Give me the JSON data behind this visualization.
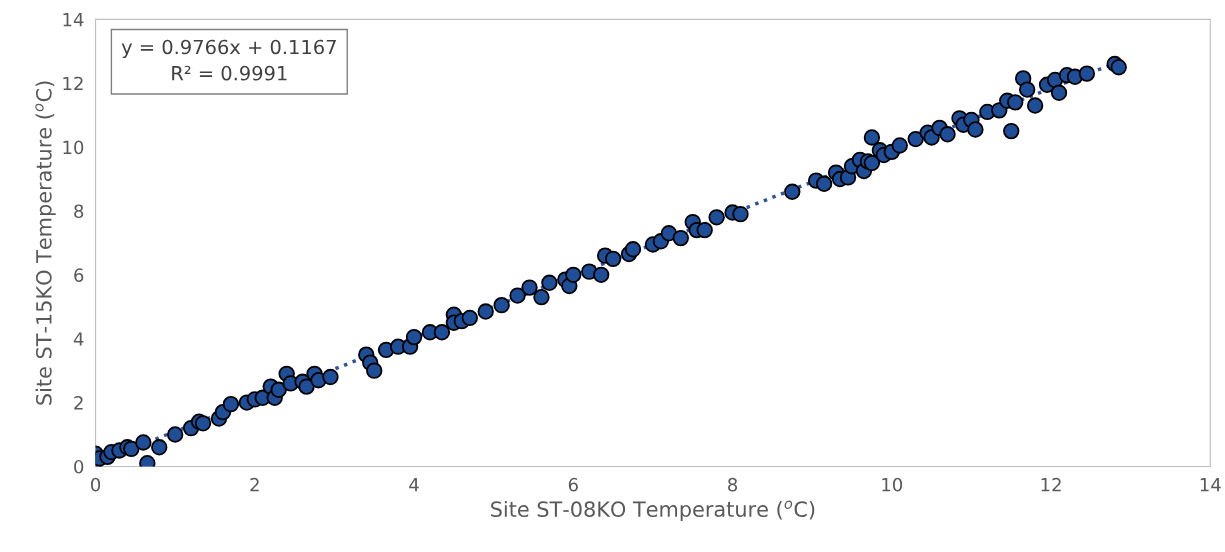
{
  "chart_data": {
    "type": "scatter",
    "xlabel": "Site ST-08KO Temperature ($^{o}$C)",
    "ylabel": "Site ST-15KO Temperature ($^{o}$C)",
    "annotations": [
      "y = 0.9766x + 0.1167\nR² = 0.9991"
    ],
    "xlim": [
      0,
      14
    ],
    "xticks": [
      0,
      2,
      4,
      6,
      8,
      10,
      12,
      14
    ],
    "ylim": [
      0,
      14
    ],
    "yticks": [
      0,
      2,
      4,
      6,
      8,
      10,
      12,
      14
    ],
    "grid": false,
    "marker": "circle",
    "series": [
      {
        "color": "#1f4e99",
        "x": [
          0,
          0,
          0.05,
          0.15,
          0.2,
          0.3,
          0.4,
          0.45,
          0.6,
          0.65,
          0.8,
          1.0,
          1.2,
          1.3,
          1.35,
          1.55,
          1.6,
          1.7,
          1.9,
          2.0,
          2.1,
          2.2,
          2.25,
          2.3,
          2.4,
          2.45,
          2.6,
          2.65,
          2.75,
          2.8,
          2.95,
          3.4,
          3.45,
          3.5,
          3.65,
          3.8,
          3.95,
          4.0,
          4.2,
          4.35,
          4.5,
          4.5,
          4.6,
          4.7,
          4.9,
          5.1,
          5.3,
          5.45,
          5.6,
          5.7,
          5.9,
          5.95,
          6.0,
          6.2,
          6.35,
          6.4,
          6.5,
          6.7,
          6.75,
          7.0,
          7.1,
          7.2,
          7.35,
          7.5,
          7.55,
          7.65,
          7.8,
          8.0,
          8.1,
          8.75,
          9.05,
          9.15,
          9.3,
          9.35,
          9.45,
          9.5,
          9.6,
          9.65,
          9.7,
          9.75,
          9.75,
          9.85,
          9.9,
          10.0,
          10.1,
          10.3,
          10.45,
          10.5,
          10.6,
          10.7,
          10.85,
          10.9,
          11.0,
          11.05,
          11.2,
          11.35,
          11.45,
          11.5,
          11.55,
          11.65,
          11.7,
          11.8,
          11.95,
          12.05,
          12.1,
          12.2,
          12.3,
          12.45,
          12.8,
          12.85
        ],
        "values": [
          0.4,
          0.15,
          0.25,
          0.3,
          0.45,
          0.5,
          0.6,
          0.55,
          0.75,
          0.1,
          0.6,
          1.0,
          1.2,
          1.4,
          1.35,
          1.5,
          1.7,
          1.95,
          2.0,
          2.1,
          2.15,
          2.5,
          2.15,
          2.4,
          2.9,
          2.6,
          2.65,
          2.5,
          2.9,
          2.7,
          2.8,
          3.5,
          3.25,
          3.0,
          3.65,
          3.75,
          3.75,
          4.05,
          4.2,
          4.2,
          4.75,
          4.5,
          4.55,
          4.65,
          4.85,
          5.05,
          5.35,
          5.6,
          5.3,
          5.75,
          5.85,
          5.65,
          6.0,
          6.1,
          6.0,
          6.6,
          6.5,
          6.65,
          6.8,
          6.95,
          7.05,
          7.3,
          7.15,
          7.65,
          7.4,
          7.4,
          7.8,
          7.95,
          7.9,
          8.6,
          8.95,
          8.85,
          9.2,
          9.0,
          9.05,
          9.4,
          9.6,
          9.25,
          9.55,
          10.3,
          9.5,
          9.9,
          9.75,
          9.85,
          10.05,
          10.25,
          10.45,
          10.3,
          10.6,
          10.4,
          10.9,
          10.7,
          10.85,
          10.55,
          11.1,
          11.15,
          11.45,
          10.5,
          11.4,
          12.15,
          11.8,
          11.3,
          11.95,
          12.1,
          11.7,
          12.25,
          12.2,
          12.3,
          12.6,
          12.5
        ]
      },
      {
        "type": "line",
        "color": "#2f5597",
        "line_style": "dotted",
        "marker": "none",
        "x": [
          0,
          12.85
        ],
        "values": [
          0.12,
          12.67
        ]
      }
    ]
  }
}
